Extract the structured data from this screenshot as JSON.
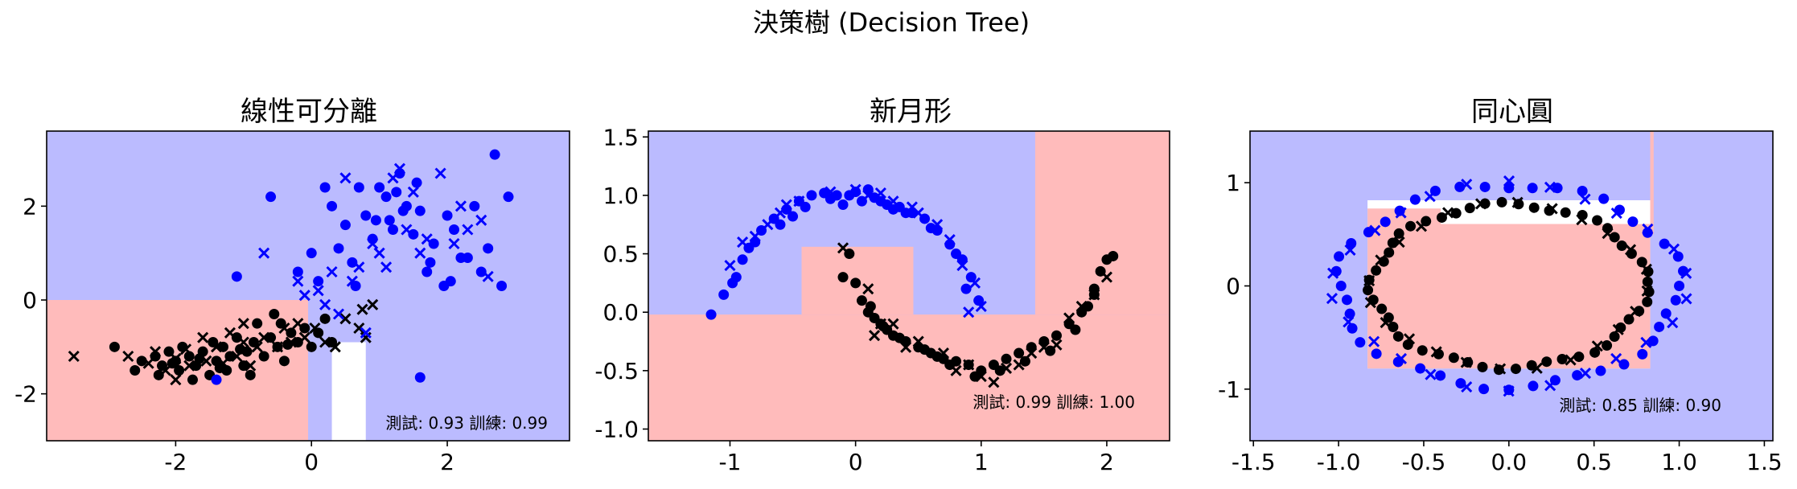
{
  "figure": {
    "suptitle": "決策樹 (Decision Tree)",
    "colors": {
      "class0_region": "#ffbbbb",
      "class1_region": "#bbbbff",
      "class0_points": "#000000",
      "class1_points": "#0000ff",
      "undecided_region": "#ffffff"
    },
    "marker_legend": "circle = training point, x = test point"
  },
  "chart_data": [
    {
      "type": "scatter",
      "title": "線性可分離",
      "score_text": "測試: 0.93 訓練: 0.99",
      "xlim": [
        -3.9,
        3.8
      ],
      "ylim": [
        -3.0,
        3.6
      ],
      "xticks": [
        -2,
        0,
        2
      ],
      "xtick_labels": [
        "-2",
        "0",
        "2"
      ],
      "yticks": [
        -2,
        0,
        2
      ],
      "ytick_labels": [
        "-2",
        "0",
        "2"
      ],
      "regions": [
        {
          "x0": -3.9,
          "x1": 3.8,
          "y0": -3.0,
          "y1": 3.6,
          "cls": 1
        },
        {
          "x0": -3.9,
          "x1": -0.05,
          "y0": -3.0,
          "y1": 0.0,
          "cls": 0
        },
        {
          "x0": 0.3,
          "x1": 0.8,
          "y0": -3.0,
          "y1": -0.9,
          "cls": "undecided"
        }
      ],
      "series": [
        {
          "class": 0,
          "set": "train",
          "x": [
            -2.9,
            -2.6,
            -2.5,
            -2.3,
            -2.25,
            -2.2,
            -2.1,
            -2.0,
            -1.95,
            -1.9,
            -1.8,
            -1.75,
            -1.7,
            -1.6,
            -1.5,
            -1.45,
            -1.4,
            -1.3,
            -1.25,
            -1.2,
            -1.1,
            -1.0,
            -0.95,
            -0.9,
            -0.85,
            -0.8,
            -0.7,
            -0.6,
            -0.5,
            -0.45,
            -0.4,
            -0.3,
            -0.2,
            -0.1,
            0.0,
            0.1,
            0.2,
            0.3,
            -1.35,
            -1.65,
            -2.05,
            -0.55,
            -0.35,
            -1.05
          ],
          "y": [
            -1.0,
            -1.5,
            -1.3,
            -1.2,
            -1.6,
            -1.4,
            -1.1,
            -1.3,
            -1.5,
            -1.0,
            -1.2,
            -1.7,
            -1.4,
            -1.1,
            -1.6,
            -0.9,
            -1.3,
            -1.0,
            -1.5,
            -1.2,
            -0.8,
            -1.4,
            -1.1,
            -1.6,
            -0.9,
            -0.5,
            -1.2,
            -0.8,
            -1.0,
            -0.5,
            -1.3,
            -0.7,
            -0.9,
            -0.6,
            -1.0,
            -0.7,
            -0.4,
            -0.9,
            -1.45,
            -1.25,
            -1.35,
            -0.3,
            -0.95,
            -1.05
          ]
        },
        {
          "class": 0,
          "set": "test",
          "x": [
            -3.5,
            -2.7,
            -2.4,
            -2.3,
            -2.15,
            -2.0,
            -1.85,
            -1.8,
            -1.6,
            -1.55,
            -1.4,
            -1.3,
            -1.2,
            -1.1,
            -1.0,
            -0.9,
            -0.8,
            -0.7,
            -0.5,
            -0.4,
            -0.3,
            -0.2,
            -0.1,
            0.05,
            0.2,
            0.35,
            0.5,
            0.7,
            0.75,
            0.8,
            0.9,
            -1.0,
            -2.0
          ],
          "y": [
            -1.2,
            -1.2,
            -1.35,
            -1.1,
            -1.5,
            -1.25,
            -1.05,
            -1.4,
            -0.8,
            -1.3,
            -1.0,
            -1.35,
            -0.7,
            -1.2,
            -0.9,
            -1.4,
            -1.0,
            -0.8,
            -1.0,
            -0.6,
            -0.9,
            -0.5,
            -0.8,
            -0.6,
            -0.9,
            -1.0,
            -0.4,
            -0.6,
            -0.2,
            -0.8,
            -0.1,
            -0.5,
            -1.7
          ]
        },
        {
          "class": 1,
          "set": "train",
          "x": [
            2.7,
            2.9,
            2.3,
            -0.6,
            0.0,
            0.3,
            0.5,
            0.6,
            0.8,
            0.9,
            1.0,
            1.1,
            1.2,
            1.3,
            1.4,
            1.5,
            1.6,
            1.7,
            1.8,
            2.0,
            2.1,
            2.2,
            2.4,
            2.6,
            0.2,
            0.4,
            0.7,
            1.15,
            1.35,
            1.55,
            1.75,
            1.95,
            2.5,
            -1.1,
            -1.4,
            1.6,
            0.1,
            0.65,
            0.95,
            1.25,
            -0.2,
            2.8,
            2.05
          ],
          "y": [
            3.1,
            2.2,
            0.9,
            2.2,
            1.0,
            2.0,
            1.6,
            0.8,
            1.8,
            1.3,
            2.4,
            2.2,
            1.5,
            2.7,
            2.0,
            1.4,
            1.9,
            0.6,
            1.2,
            1.8,
            1.5,
            0.9,
            2.0,
            1.1,
            2.4,
            1.1,
            2.4,
            1.7,
            1.9,
            2.5,
            0.8,
            0.3,
            0.6,
            0.5,
            -1.7,
            -1.65,
            0.4,
            0.3,
            1.7,
            2.3,
            0.6,
            0.3,
            0.4
          ]
        },
        {
          "class": 1,
          "set": "test",
          "x": [
            0.5,
            1.2,
            1.3,
            1.5,
            1.9,
            2.2,
            2.3,
            2.5,
            2.6,
            2.1,
            1.0,
            0.9,
            0.7,
            0.6,
            0.3,
            0.1,
            -0.2,
            -0.1,
            1.4,
            1.7,
            -0.7,
            0.4,
            0.8,
            1.1,
            1.6,
            0.2
          ],
          "y": [
            2.6,
            2.6,
            2.8,
            2.3,
            2.7,
            2.0,
            1.5,
            1.7,
            0.5,
            1.2,
            1.0,
            1.2,
            0.7,
            0.4,
            0.6,
            0.2,
            0.4,
            0.1,
            1.5,
            1.3,
            1.0,
            -0.3,
            -0.7,
            0.7,
            1.0,
            -0.1
          ]
        }
      ]
    },
    {
      "type": "scatter",
      "title": "新月形",
      "score_text": "測試: 0.99 訓練: 1.00",
      "xlim": [
        -1.65,
        2.5
      ],
      "ylim": [
        -1.1,
        1.55
      ],
      "xticks": [
        -1,
        0,
        1,
        2
      ],
      "xtick_labels": [
        "-1",
        "0",
        "1",
        "2"
      ],
      "yticks": [
        -1.0,
        -0.5,
        0.0,
        0.5,
        1.0,
        1.5
      ],
      "ytick_labels": [
        "-1.0",
        "-0.5",
        "0.0",
        "0.5",
        "1.0",
        "1.5"
      ],
      "regions": [
        {
          "x0": -1.65,
          "x1": 2.5,
          "y0": -1.1,
          "y1": 1.55,
          "cls": 1
        },
        {
          "x0": -1.65,
          "x1": 2.5,
          "y0": -1.1,
          "y1": -0.02,
          "cls": 0
        },
        {
          "x0": -0.43,
          "x1": 0.46,
          "y0": -0.02,
          "y1": 0.56,
          "cls": 0
        },
        {
          "x0": 1.43,
          "x1": 2.5,
          "y0": -0.02,
          "y1": 1.55,
          "cls": 0
        }
      ],
      "series": [
        {
          "class": 1,
          "set": "train",
          "x": [
            -1.15,
            -1.05,
            -0.95,
            -0.9,
            -0.85,
            -0.75,
            -0.65,
            -0.55,
            -0.45,
            -0.35,
            -0.25,
            -0.15,
            -0.05,
            0.05,
            0.15,
            0.25,
            0.35,
            0.45,
            0.55,
            0.65,
            0.75,
            0.85,
            0.92,
            0.98,
            -0.98,
            -0.8,
            -0.6,
            -0.4,
            -0.2,
            0.0,
            0.2,
            0.4,
            0.6,
            0.8,
            0.88,
            -0.1,
            0.1,
            0.3,
            -0.5
          ],
          "y": [
            -0.02,
            0.15,
            0.3,
            0.45,
            0.55,
            0.7,
            0.8,
            0.88,
            0.95,
            1.0,
            1.02,
            1.0,
            1.0,
            0.95,
            0.98,
            0.92,
            0.9,
            0.85,
            0.8,
            0.7,
            0.58,
            0.45,
            0.3,
            0.1,
            0.25,
            0.6,
            0.75,
            0.9,
            0.97,
            1.03,
            0.95,
            0.85,
            0.72,
            0.5,
            0.2,
            0.92,
            1.05,
            0.88,
            0.82
          ]
        },
        {
          "class": 1,
          "set": "test",
          "x": [
            -1.0,
            -0.9,
            -0.7,
            -0.55,
            -0.45,
            -0.2,
            0.0,
            0.1,
            0.2,
            0.3,
            0.45,
            0.5,
            0.65,
            0.75,
            0.85,
            0.95,
            1.0,
            -0.8,
            -0.6,
            0.9
          ],
          "y": [
            0.4,
            0.6,
            0.75,
            0.92,
            0.95,
            1.03,
            1.05,
            1.0,
            1.02,
            0.95,
            0.9,
            0.85,
            0.75,
            0.62,
            0.4,
            0.25,
            0.05,
            0.65,
            0.85,
            0.0
          ]
        },
        {
          "class": 0,
          "set": "train",
          "x": [
            -0.1,
            -0.05,
            0.0,
            0.05,
            0.1,
            0.15,
            0.2,
            0.25,
            0.3,
            0.4,
            0.5,
            0.6,
            0.7,
            0.8,
            0.9,
            1.0,
            1.1,
            1.2,
            1.3,
            1.4,
            1.5,
            1.6,
            1.7,
            1.8,
            1.9,
            1.95,
            2.0,
            2.05,
            0.35,
            0.55,
            0.75,
            0.95,
            1.15,
            1.35,
            1.55,
            1.75,
            1.85,
            1.9,
            0.12,
            0.22,
            0.65
          ],
          "y": [
            0.3,
            0.5,
            0.25,
            0.1,
            0.0,
            -0.05,
            -0.1,
            -0.15,
            -0.2,
            -0.25,
            -0.3,
            -0.35,
            -0.4,
            -0.42,
            -0.45,
            -0.5,
            -0.45,
            -0.4,
            -0.35,
            -0.3,
            -0.25,
            -0.2,
            -0.1,
            0.0,
            0.2,
            0.35,
            0.45,
            0.48,
            -0.22,
            -0.32,
            -0.45,
            -0.55,
            -0.5,
            -0.42,
            -0.33,
            -0.15,
            0.05,
            0.15,
            0.05,
            -0.12,
            -0.38
          ]
        },
        {
          "class": 0,
          "set": "test",
          "x": [
            -0.1,
            0.1,
            0.15,
            0.3,
            0.5,
            0.7,
            0.9,
            1.0,
            1.1,
            1.3,
            1.5,
            1.6,
            1.7,
            1.8,
            1.9,
            2.0,
            0.2,
            0.4,
            0.8,
            1.2,
            1.4
          ],
          "y": [
            0.55,
            0.2,
            -0.2,
            -0.1,
            -0.25,
            -0.35,
            -0.45,
            -0.55,
            -0.6,
            -0.45,
            -0.3,
            -0.28,
            -0.05,
            0.05,
            0.15,
            0.3,
            -0.1,
            -0.3,
            -0.5,
            -0.48,
            -0.35
          ]
        }
      ]
    },
    {
      "type": "scatter",
      "title": "同心圓",
      "score_text": "測試: 0.85 訓練: 0.90",
      "xlim": [
        -1.52,
        1.55
      ],
      "ylim": [
        -1.5,
        1.5
      ],
      "xticks": [
        -1.5,
        -1.0,
        -0.5,
        0.0,
        0.5,
        1.0,
        1.5
      ],
      "xtick_labels": [
        "-1.5",
        "-1.0",
        "-0.5",
        "0.0",
        "0.5",
        "1.0",
        "1.5"
      ],
      "yticks": [
        -1,
        0,
        1
      ],
      "ytick_labels": [
        "-1",
        "0",
        "1"
      ],
      "regions": [
        {
          "x0": -1.52,
          "x1": 1.55,
          "y0": -1.5,
          "y1": 1.5,
          "cls": 1
        },
        {
          "x0": -0.83,
          "x1": 0.83,
          "y0": -0.8,
          "y1": 0.83,
          "cls": "undecided"
        },
        {
          "x0": -0.83,
          "x1": 0.83,
          "y0": -0.8,
          "y1": 0.6,
          "cls": 0
        },
        {
          "x0": -0.83,
          "x1": -0.4,
          "y0": 0.58,
          "y1": 0.75,
          "cls": 0
        },
        {
          "x0": 0.83,
          "x1": 0.85,
          "y0": 0.5,
          "y1": 1.5,
          "cls": 0
        }
      ],
      "series": [
        {
          "class": 1,
          "set": "train",
          "ring": {
            "rx": 1.0,
            "ry": 0.98,
            "n": 44,
            "jitter": 0.04,
            "offset": 0.0
          }
        },
        {
          "class": 1,
          "set": "test",
          "ring": {
            "rx": 1.0,
            "ry": 0.98,
            "n": 26,
            "jitter": 0.05,
            "offset": 0.12
          }
        },
        {
          "class": 0,
          "set": "train",
          "ring": {
            "rx": 0.8,
            "ry": 0.79,
            "n": 52,
            "jitter": 0.03,
            "offset": 0.05
          }
        },
        {
          "class": 0,
          "set": "test",
          "ring": {
            "rx": 0.8,
            "ry": 0.79,
            "n": 24,
            "jitter": 0.03,
            "offset": 0.2
          }
        }
      ]
    }
  ]
}
